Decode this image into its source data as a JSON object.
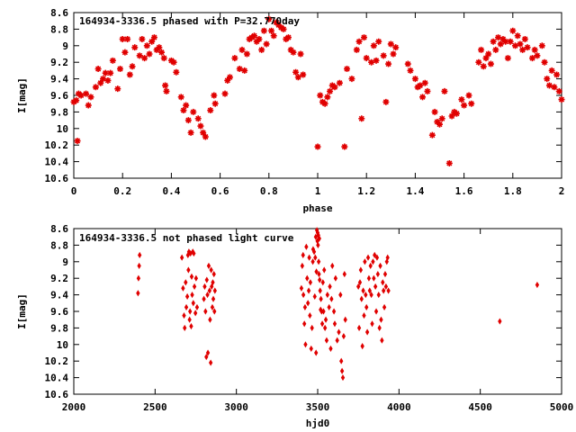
{
  "chart_data": [
    {
      "type": "scatter",
      "title": "164934-3336.5 phased with P=32.770day",
      "xlabel": "phase",
      "ylabel": "I[mag]",
      "xlim": [
        0,
        2
      ],
      "ylim": [
        10.6,
        8.6
      ],
      "y_inverted": true,
      "xticks": [
        0,
        0.2,
        0.4,
        0.6,
        0.8,
        1,
        1.2,
        1.4,
        1.6,
        1.8,
        2
      ],
      "xtick_labels": [
        "0",
        "0.2",
        "0.4",
        "0.6",
        "0.8",
        "1",
        "1.2",
        "1.4",
        "1.6",
        "1.8",
        "2"
      ],
      "yticks": [
        8.6,
        8.8,
        9,
        9.2,
        9.4,
        9.6,
        9.8,
        10,
        10.2,
        10.4,
        10.6
      ],
      "ytick_labels": [
        "8.6",
        "8.8",
        "9",
        "9.2",
        "9.4",
        "9.6",
        "9.8",
        "10",
        "10.2",
        "10.4",
        "10.6"
      ],
      "grid": false,
      "marker_color": "#e00000",
      "marker": "star",
      "points": [
        [
          0.0,
          9.68
        ],
        [
          0.01,
          9.66
        ],
        [
          0.015,
          10.15
        ],
        [
          0.02,
          9.58
        ],
        [
          0.03,
          9.6
        ],
        [
          0.05,
          9.58
        ],
        [
          0.06,
          9.72
        ],
        [
          0.07,
          9.62
        ],
        [
          0.09,
          9.5
        ],
        [
          0.1,
          9.28
        ],
        [
          0.11,
          9.45
        ],
        [
          0.12,
          9.4
        ],
        [
          0.13,
          9.33
        ],
        [
          0.14,
          9.42
        ],
        [
          0.15,
          9.33
        ],
        [
          0.16,
          9.18
        ],
        [
          0.18,
          9.52
        ],
        [
          0.19,
          9.28
        ],
        [
          0.2,
          8.92
        ],
        [
          0.21,
          9.08
        ],
        [
          0.22,
          8.92
        ],
        [
          0.23,
          9.35
        ],
        [
          0.24,
          9.25
        ],
        [
          0.25,
          9.02
        ],
        [
          0.27,
          9.12
        ],
        [
          0.28,
          8.92
        ],
        [
          0.29,
          9.15
        ],
        [
          0.3,
          9.0
        ],
        [
          0.31,
          9.1
        ],
        [
          0.32,
          8.95
        ],
        [
          0.33,
          8.9
        ],
        [
          0.34,
          9.05
        ],
        [
          0.35,
          9.02
        ],
        [
          0.36,
          9.08
        ],
        [
          0.37,
          9.15
        ],
        [
          0.375,
          9.48
        ],
        [
          0.38,
          9.55
        ],
        [
          0.4,
          9.18
        ],
        [
          0.41,
          9.2
        ],
        [
          0.42,
          9.32
        ],
        [
          0.44,
          9.62
        ],
        [
          0.45,
          9.78
        ],
        [
          0.46,
          9.72
        ],
        [
          0.47,
          9.9
        ],
        [
          0.48,
          10.05
        ],
        [
          0.49,
          9.8
        ],
        [
          0.51,
          9.88
        ],
        [
          0.52,
          9.97
        ],
        [
          0.53,
          10.05
        ],
        [
          0.54,
          10.1
        ],
        [
          0.56,
          9.78
        ],
        [
          0.575,
          9.6
        ],
        [
          0.58,
          9.7
        ],
        [
          0.62,
          9.58
        ],
        [
          0.63,
          9.42
        ],
        [
          0.64,
          9.38
        ],
        [
          0.66,
          9.15
        ],
        [
          0.68,
          9.28
        ],
        [
          0.69,
          9.05
        ],
        [
          0.7,
          9.3
        ],
        [
          0.71,
          9.1
        ],
        [
          0.72,
          8.92
        ],
        [
          0.73,
          8.9
        ],
        [
          0.74,
          8.88
        ],
        [
          0.75,
          8.95
        ],
        [
          0.76,
          8.92
        ],
        [
          0.77,
          9.05
        ],
        [
          0.78,
          8.82
        ],
        [
          0.79,
          8.98
        ],
        [
          0.8,
          8.68
        ],
        [
          0.81,
          8.82
        ],
        [
          0.82,
          8.88
        ],
        [
          0.83,
          8.72
        ],
        [
          0.84,
          8.75
        ],
        [
          0.85,
          8.78
        ],
        [
          0.86,
          8.8
        ],
        [
          0.87,
          8.92
        ],
        [
          0.88,
          8.9
        ],
        [
          0.89,
          9.05
        ],
        [
          0.9,
          9.08
        ],
        [
          0.91,
          9.32
        ],
        [
          0.92,
          9.38
        ],
        [
          0.93,
          9.1
        ],
        [
          0.94,
          9.35
        ],
        [
          1.0,
          10.22
        ],
        [
          1.01,
          9.6
        ],
        [
          1.02,
          9.68
        ],
        [
          1.03,
          9.7
        ],
        [
          1.04,
          9.62
        ],
        [
          1.05,
          9.55
        ],
        [
          1.06,
          9.48
        ],
        [
          1.07,
          9.5
        ],
        [
          1.09,
          9.45
        ],
        [
          1.11,
          10.22
        ],
        [
          1.12,
          9.28
        ],
        [
          1.14,
          9.4
        ],
        [
          1.16,
          9.05
        ],
        [
          1.17,
          8.95
        ],
        [
          1.18,
          9.88
        ],
        [
          1.19,
          8.9
        ],
        [
          1.2,
          9.15
        ],
        [
          1.22,
          9.2
        ],
        [
          1.23,
          9.0
        ],
        [
          1.24,
          9.18
        ],
        [
          1.25,
          8.95
        ],
        [
          1.27,
          9.12
        ],
        [
          1.28,
          9.68
        ],
        [
          1.29,
          9.22
        ],
        [
          1.3,
          8.98
        ],
        [
          1.31,
          9.1
        ],
        [
          1.32,
          9.02
        ],
        [
          1.37,
          9.22
        ],
        [
          1.38,
          9.3
        ],
        [
          1.4,
          9.4
        ],
        [
          1.41,
          9.5
        ],
        [
          1.42,
          9.48
        ],
        [
          1.43,
          9.62
        ],
        [
          1.44,
          9.45
        ],
        [
          1.45,
          9.55
        ],
        [
          1.47,
          10.08
        ],
        [
          1.48,
          9.8
        ],
        [
          1.49,
          9.92
        ],
        [
          1.5,
          9.95
        ],
        [
          1.51,
          9.88
        ],
        [
          1.52,
          9.55
        ],
        [
          1.54,
          10.42
        ],
        [
          1.55,
          9.85
        ],
        [
          1.56,
          9.8
        ],
        [
          1.57,
          9.82
        ],
        [
          1.59,
          9.65
        ],
        [
          1.6,
          9.72
        ],
        [
          1.62,
          9.6
        ],
        [
          1.63,
          9.7
        ],
        [
          1.66,
          9.2
        ],
        [
          1.67,
          9.05
        ],
        [
          1.68,
          9.25
        ],
        [
          1.69,
          9.15
        ],
        [
          1.7,
          9.1
        ],
        [
          1.71,
          9.22
        ],
        [
          1.72,
          8.95
        ],
        [
          1.73,
          9.05
        ],
        [
          1.74,
          8.9
        ],
        [
          1.75,
          8.98
        ],
        [
          1.76,
          8.92
        ],
        [
          1.77,
          8.95
        ],
        [
          1.78,
          9.15
        ],
        [
          1.79,
          8.95
        ],
        [
          1.8,
          8.82
        ],
        [
          1.81,
          9.0
        ],
        [
          1.82,
          8.88
        ],
        [
          1.83,
          8.98
        ],
        [
          1.84,
          9.05
        ],
        [
          1.85,
          8.92
        ],
        [
          1.86,
          9.02
        ],
        [
          1.88,
          9.15
        ],
        [
          1.89,
          9.05
        ],
        [
          1.9,
          9.12
        ],
        [
          1.92,
          9.0
        ],
        [
          1.93,
          9.2
        ],
        [
          1.94,
          9.4
        ],
        [
          1.95,
          9.48
        ],
        [
          1.96,
          9.3
        ],
        [
          1.97,
          9.5
        ],
        [
          1.98,
          9.35
        ],
        [
          1.99,
          9.55
        ],
        [
          2.0,
          9.65
        ]
      ]
    },
    {
      "type": "scatter",
      "title": "164934-3336.5 not phased light curve",
      "xlabel": "hjd0",
      "ylabel": "I[mag]",
      "xlim": [
        2000,
        5000
      ],
      "ylim": [
        10.6,
        8.6
      ],
      "y_inverted": true,
      "xticks": [
        2000,
        2500,
        3000,
        3500,
        4000,
        4500,
        5000
      ],
      "xtick_labels": [
        "2000",
        "2500",
        "3000",
        "3500",
        "4000",
        "4500",
        "5000"
      ],
      "yticks": [
        8.6,
        8.8,
        9,
        9.2,
        9.4,
        9.6,
        9.8,
        10,
        10.2,
        10.4,
        10.6
      ],
      "ytick_labels": [
        "8.6",
        "8.8",
        "9",
        "9.2",
        "9.4",
        "9.6",
        "9.8",
        "10",
        "10.2",
        "10.4",
        "10.6"
      ],
      "grid": false,
      "marker_color": "#e00000",
      "marker": "diamond",
      "points": [
        [
          2395,
          9.38
        ],
        [
          2398,
          9.2
        ],
        [
          2402,
          9.05
        ],
        [
          2405,
          8.92
        ],
        [
          2665,
          8.95
        ],
        [
          2672,
          9.32
        ],
        [
          2678,
          9.65
        ],
        [
          2682,
          9.8
        ],
        [
          2688,
          9.25
        ],
        [
          2692,
          9.55
        ],
        [
          2698,
          9.42
        ],
        [
          2702,
          8.92
        ],
        [
          2705,
          9.1
        ],
        [
          2708,
          8.88
        ],
        [
          2712,
          9.7
        ],
        [
          2715,
          9.6
        ],
        [
          2718,
          8.9
        ],
        [
          2722,
          9.78
        ],
        [
          2725,
          9.18
        ],
        [
          2728,
          9.4
        ],
        [
          2732,
          8.88
        ],
        [
          2735,
          9.5
        ],
        [
          2738,
          8.9
        ],
        [
          2742,
          9.3
        ],
        [
          2748,
          9.62
        ],
        [
          2752,
          9.2
        ],
        [
          2758,
          9.55
        ],
        [
          2800,
          9.45
        ],
        [
          2805,
          9.3
        ],
        [
          2810,
          9.6
        ],
        [
          2815,
          10.15
        ],
        [
          2818,
          9.22
        ],
        [
          2822,
          9.4
        ],
        [
          2825,
          10.1
        ],
        [
          2830,
          9.05
        ],
        [
          2835,
          9.35
        ],
        [
          2838,
          9.7
        ],
        [
          2842,
          10.22
        ],
        [
          2845,
          9.1
        ],
        [
          2848,
          9.3
        ],
        [
          2852,
          9.55
        ],
        [
          2855,
          9.25
        ],
        [
          2858,
          9.45
        ],
        [
          2862,
          9.15
        ],
        [
          2865,
          9.6
        ],
        [
          2868,
          9.35
        ],
        [
          3400,
          9.32
        ],
        [
          3405,
          9.05
        ],
        [
          3410,
          8.92
        ],
        [
          3412,
          9.4
        ],
        [
          3418,
          9.75
        ],
        [
          3422,
          9.55
        ],
        [
          3425,
          10.0
        ],
        [
          3430,
          8.82
        ],
        [
          3435,
          9.2
        ],
        [
          3440,
          9.5
        ],
        [
          3445,
          9.35
        ],
        [
          3448,
          8.95
        ],
        [
          3452,
          9.65
        ],
        [
          3455,
          9.25
        ],
        [
          3460,
          10.05
        ],
        [
          3465,
          9.8
        ],
        [
          3470,
          9.0
        ],
        [
          3472,
          8.85
        ],
        [
          3478,
          8.88
        ],
        [
          3482,
          9.42
        ],
        [
          3485,
          8.95
        ],
        [
          3488,
          8.7
        ],
        [
          3490,
          10.1
        ],
        [
          3492,
          9.12
        ],
        [
          3495,
          8.62
        ],
        [
          3498,
          8.75
        ],
        [
          3500,
          8.65
        ],
        [
          3502,
          8.8
        ],
        [
          3504,
          8.68
        ],
        [
          3506,
          9.0
        ],
        [
          3508,
          9.15
        ],
        [
          3510,
          8.72
        ],
        [
          3512,
          9.22
        ],
        [
          3515,
          9.35
        ],
        [
          3518,
          9.58
        ],
        [
          3520,
          9.45
        ],
        [
          3524,
          9.6
        ],
        [
          3528,
          9.75
        ],
        [
          3532,
          9.25
        ],
        [
          3536,
          9.6
        ],
        [
          3540,
          9.1
        ],
        [
          3545,
          9.8
        ],
        [
          3550,
          9.7
        ],
        [
          3555,
          9.95
        ],
        [
          3560,
          9.4
        ],
        [
          3570,
          9.55
        ],
        [
          3575,
          9.3
        ],
        [
          3580,
          10.05
        ],
        [
          3585,
          9.45
        ],
        [
          3590,
          9.05
        ],
        [
          3600,
          9.6
        ],
        [
          3605,
          9.75
        ],
        [
          3610,
          9.2
        ],
        [
          3620,
          9.95
        ],
        [
          3630,
          9.85
        ],
        [
          3640,
          9.4
        ],
        [
          3645,
          10.2
        ],
        [
          3650,
          10.32
        ],
        [
          3655,
          10.4
        ],
        [
          3660,
          9.9
        ],
        [
          3665,
          9.15
        ],
        [
          3670,
          9.7
        ],
        [
          3750,
          9.3
        ],
        [
          3755,
          9.8
        ],
        [
          3760,
          9.25
        ],
        [
          3765,
          9.1
        ],
        [
          3770,
          9.45
        ],
        [
          3775,
          10.02
        ],
        [
          3780,
          9.35
        ],
        [
          3785,
          9.65
        ],
        [
          3790,
          9.0
        ],
        [
          3795,
          9.4
        ],
        [
          3800,
          9.55
        ],
        [
          3805,
          9.85
        ],
        [
          3810,
          8.95
        ],
        [
          3815,
          9.2
        ],
        [
          3820,
          9.35
        ],
        [
          3825,
          9.05
        ],
        [
          3830,
          9.4
        ],
        [
          3835,
          9.75
        ],
        [
          3840,
          9.0
        ],
        [
          3845,
          9.2
        ],
        [
          3850,
          8.92
        ],
        [
          3855,
          9.3
        ],
        [
          3860,
          9.6
        ],
        [
          3865,
          8.95
        ],
        [
          3870,
          9.15
        ],
        [
          3875,
          9.4
        ],
        [
          3880,
          9.8
        ],
        [
          3885,
          9.05
        ],
        [
          3890,
          9.7
        ],
        [
          3895,
          9.95
        ],
        [
          3900,
          9.25
        ],
        [
          3905,
          9.35
        ],
        [
          3910,
          9.55
        ],
        [
          3915,
          9.15
        ],
        [
          3920,
          9.3
        ],
        [
          3925,
          9.0
        ],
        [
          3930,
          8.95
        ],
        [
          3935,
          9.35
        ],
        [
          4620,
          9.72
        ],
        [
          4850,
          9.28
        ]
      ]
    }
  ]
}
